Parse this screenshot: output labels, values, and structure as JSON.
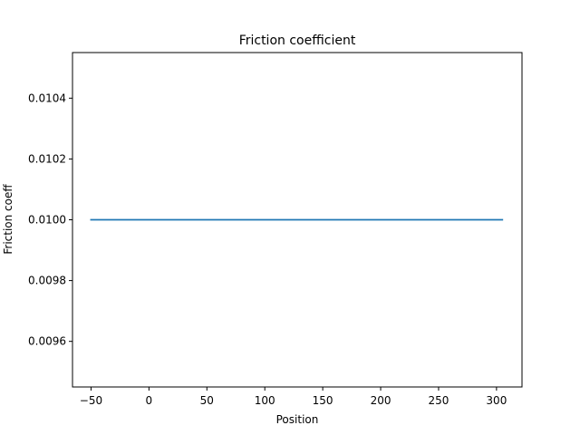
{
  "chart_data": {
    "type": "line",
    "title": "Friction coefficient",
    "xlabel": "Position",
    "ylabel": "Friction coeff",
    "xlim": [
      -66,
      322
    ],
    "ylim": [
      0.00945,
      0.01055
    ],
    "x_ticks": [
      -50,
      0,
      50,
      100,
      150,
      200,
      250,
      300
    ],
    "x_tick_labels": [
      "−50",
      "0",
      "50",
      "100",
      "150",
      "200",
      "250",
      "300"
    ],
    "y_ticks": [
      0.0096,
      0.0098,
      0.01,
      0.0102,
      0.0104
    ],
    "y_tick_labels": [
      "0.0096",
      "0.0098",
      "0.0100",
      "0.0102",
      "0.0104"
    ],
    "grid": false,
    "series": [
      {
        "x": [
          -50,
          305
        ],
        "y": [
          0.01,
          0.01
        ],
        "color": "#1f77b4"
      }
    ]
  }
}
